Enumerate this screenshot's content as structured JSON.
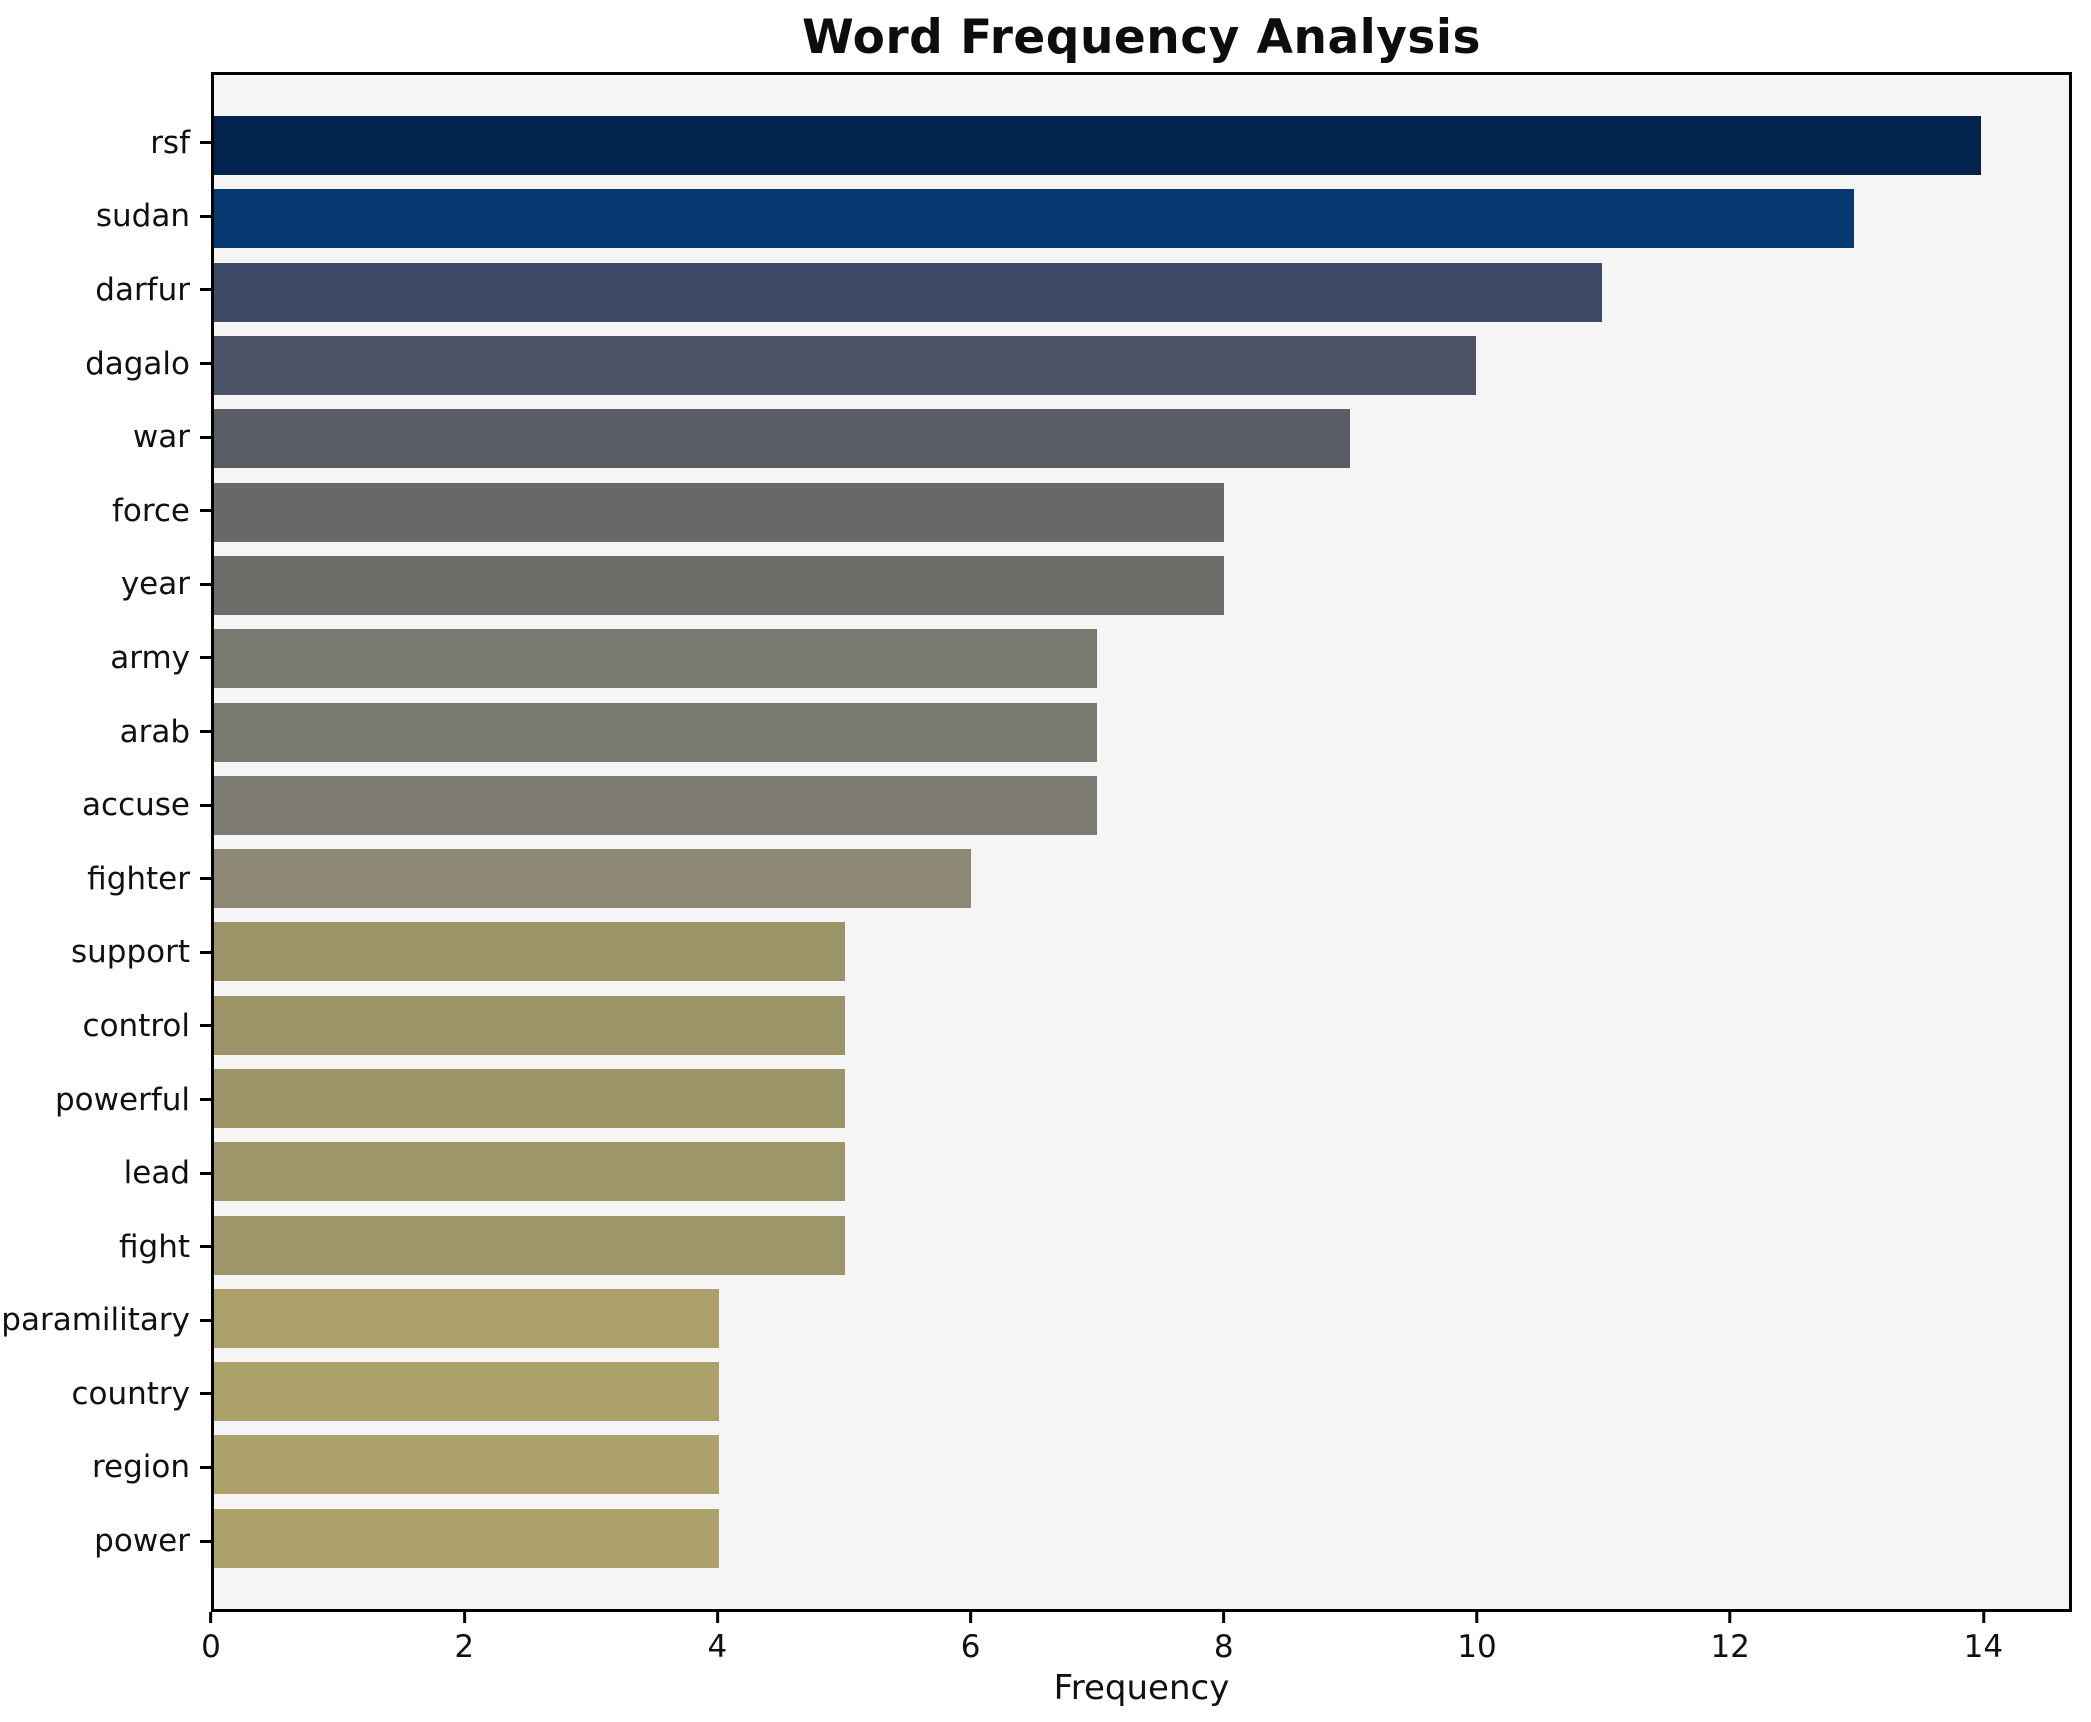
{
  "title": "Word Frequency Analysis",
  "chart_data": {
    "type": "bar",
    "orientation": "horizontal",
    "title": "Word Frequency Analysis",
    "xlabel": "Frequency",
    "ylabel": "",
    "categories": [
      "rsf",
      "sudan",
      "darfur",
      "dagalo",
      "war",
      "force",
      "year",
      "army",
      "arab",
      "accuse",
      "fighter",
      "support",
      "control",
      "powerful",
      "lead",
      "fight",
      "paramilitary",
      "country",
      "region",
      "power"
    ],
    "values": [
      14,
      13,
      11,
      10,
      9,
      8,
      8,
      7,
      7,
      7,
      6,
      5,
      5,
      5,
      5,
      5,
      4,
      4,
      4,
      4
    ],
    "bar_colors": [
      "#01234e",
      "#07386f",
      "#3c4a68",
      "#4d5367",
      "#595e64",
      "#666965",
      "#6b6d69",
      "#7a7971",
      "#7b7a72",
      "#7c7a72",
      "#8d8873",
      "#9c9366",
      "#9c9366",
      "#9d9467",
      "#9e9568",
      "#9e9568",
      "#aca06a",
      "#ada16a",
      "#ada26b",
      "#aea26b"
    ],
    "xlim": [
      0,
      14.7
    ],
    "xticks": [
      0,
      2,
      4,
      6,
      8,
      10,
      12,
      14
    ],
    "grid": false,
    "legend": "none",
    "plot_background": "#f5f5f6",
    "figure_background": "#ffffff",
    "colormap": "cividis"
  }
}
